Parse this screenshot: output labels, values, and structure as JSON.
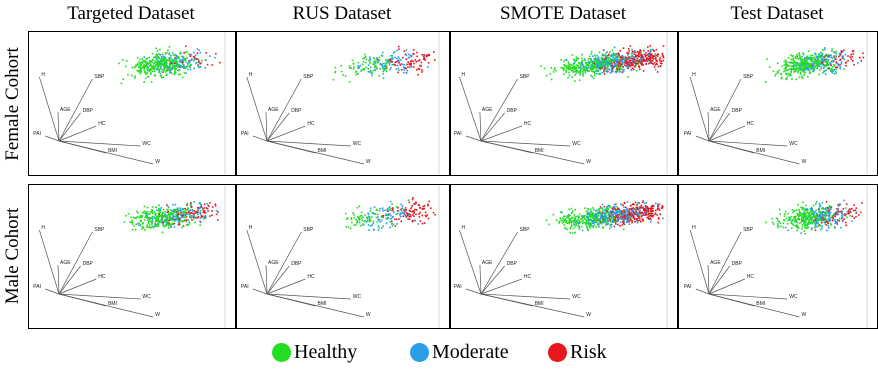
{
  "columns": [
    "Targeted Dataset",
    "RUS Dataset",
    "SMOTE Dataset",
    "Test Dataset"
  ],
  "rows": [
    "Female Cohort",
    "Male Cohort"
  ],
  "legend": [
    {
      "label": "Healthy",
      "color": "#22dd22"
    },
    {
      "label": "Moderate",
      "color": "#2a9fe8"
    },
    {
      "label": "Risk",
      "color": "#e8161d"
    }
  ],
  "chart_data": {
    "type": "scatter",
    "description_free": true,
    "vector_labels": [
      "H",
      "SBP",
      "AGE",
      "DBP",
      "HC",
      "PAI",
      "WC",
      "BMI",
      "W"
    ],
    "class_colors": {
      "Healthy": "#22dd22",
      "Moderate": "#2a9fe8",
      "Risk": "#e8161d"
    },
    "panels": [
      {
        "row": "Female Cohort",
        "column": "Targeted Dataset",
        "mix": [
          0.7,
          0.22,
          0.08
        ]
      },
      {
        "row": "Female Cohort",
        "column": "RUS Dataset",
        "mix": [
          0.34,
          0.33,
          0.33
        ]
      },
      {
        "row": "Female Cohort",
        "column": "SMOTE Dataset",
        "mix": [
          0.34,
          0.33,
          0.33
        ]
      },
      {
        "row": "Female Cohort",
        "column": "Test Dataset",
        "mix": [
          0.68,
          0.24,
          0.08
        ]
      },
      {
        "row": "Male Cohort",
        "column": "Targeted Dataset",
        "mix": [
          0.55,
          0.27,
          0.18
        ]
      },
      {
        "row": "Male Cohort",
        "column": "RUS Dataset",
        "mix": [
          0.34,
          0.33,
          0.33
        ]
      },
      {
        "row": "Male Cohort",
        "column": "SMOTE Dataset",
        "mix": [
          0.34,
          0.33,
          0.33
        ]
      },
      {
        "row": "Male Cohort",
        "column": "Test Dataset",
        "mix": [
          0.55,
          0.28,
          0.17
        ]
      }
    ]
  }
}
